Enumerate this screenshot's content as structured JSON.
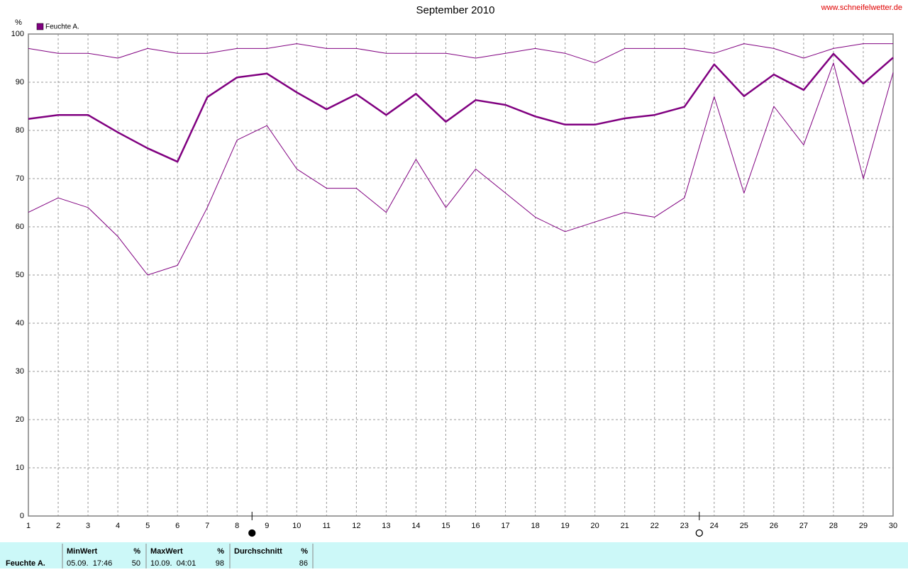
{
  "chart_data": {
    "type": "line",
    "title": "September 2010",
    "source": "www.schneifelwetter.de",
    "y_unit": "%",
    "x": [
      1,
      2,
      3,
      4,
      5,
      6,
      7,
      8,
      9,
      10,
      11,
      12,
      13,
      14,
      15,
      16,
      17,
      18,
      19,
      20,
      21,
      22,
      23,
      24,
      25,
      26,
      27,
      28,
      29,
      30
    ],
    "series": [
      {
        "name": "Feuchte A.",
        "color": "#800080",
        "line_width": 2.5,
        "values": [
          82.4,
          83.2,
          83.2,
          79.6,
          76.3,
          73.5,
          86.9,
          91.0,
          91.8,
          87.9,
          84.4,
          87.5,
          83.2,
          87.6,
          81.8,
          86.3,
          85.3,
          82.9,
          81.2,
          81.2,
          82.5,
          83.2,
          84.9,
          93.7,
          87.1,
          91.6,
          88.4,
          95.9,
          89.7,
          95.1
        ]
      },
      {
        "color": "#800080",
        "line_width": 1,
        "values": [
          97,
          96,
          96,
          95,
          97,
          96,
          96,
          97,
          97,
          98,
          97,
          97,
          96,
          96,
          96,
          95,
          96,
          97,
          96,
          94,
          97,
          97,
          97,
          96,
          98,
          97,
          95,
          97,
          98,
          98
        ]
      },
      {
        "color": "#800080",
        "line_width": 1,
        "values": [
          63,
          66,
          64,
          58,
          50,
          52,
          64,
          78,
          81,
          72,
          68,
          68,
          63,
          74,
          64,
          72,
          67,
          62,
          59,
          61,
          63,
          62,
          66,
          87,
          67,
          85,
          77,
          94,
          70,
          92
        ]
      }
    ],
    "xlim": [
      1,
      30
    ],
    "xticks": [
      1,
      2,
      3,
      4,
      5,
      6,
      7,
      8,
      9,
      10,
      11,
      12,
      13,
      14,
      15,
      16,
      17,
      18,
      19,
      20,
      21,
      22,
      23,
      24,
      25,
      26,
      27,
      28,
      29,
      30
    ],
    "ylim": [
      0,
      100
    ],
    "yticks": [
      0,
      10,
      20,
      30,
      40,
      50,
      60,
      70,
      80,
      90,
      100
    ],
    "grid": true,
    "legend": "top-left",
    "moon_markers": [
      {
        "x": 8.5,
        "filled": true
      },
      {
        "x": 23.5,
        "filled": false
      }
    ]
  },
  "stats": {
    "label": "Feuchte A.",
    "columns": [
      {
        "header": "MinWert",
        "unit": "%",
        "date": "05.09.  17:46",
        "value": 50
      },
      {
        "header": "MaxWert",
        "unit": "%",
        "date": "10.09.  04:01",
        "value": 98
      },
      {
        "header": "Durchschnitt",
        "unit": "%",
        "value": 86
      }
    ]
  }
}
